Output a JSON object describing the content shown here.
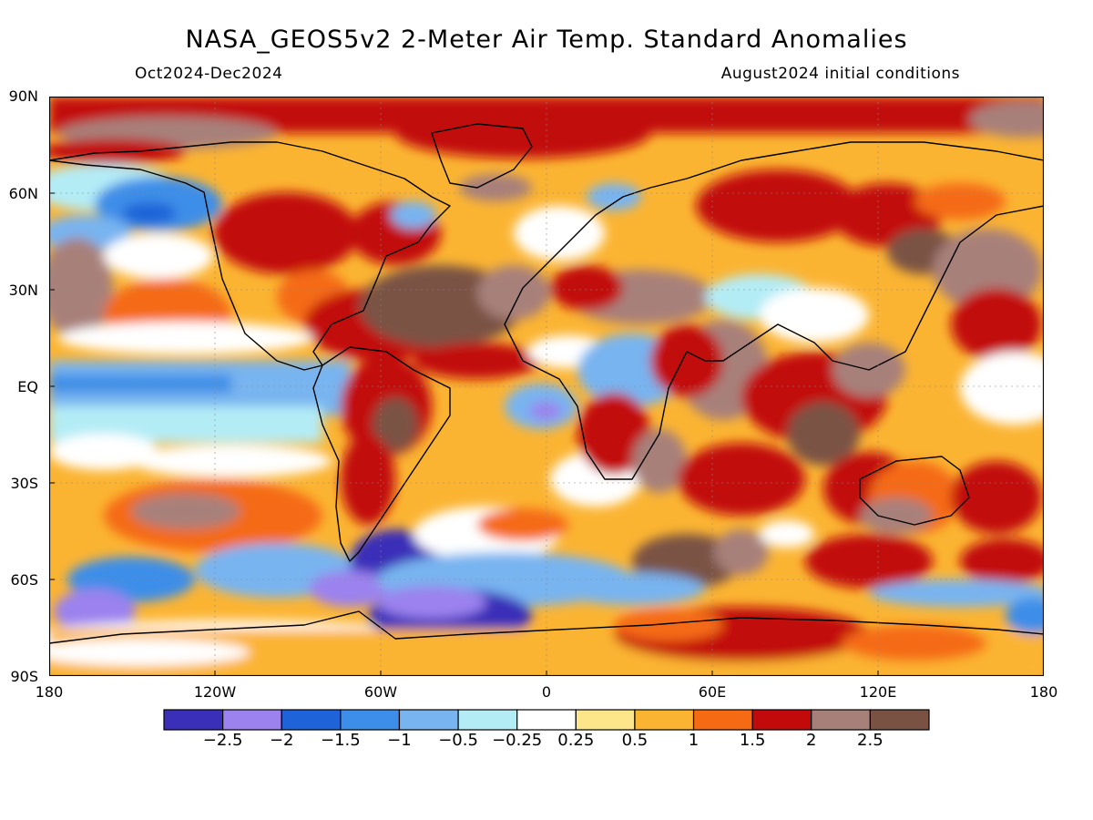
{
  "header": {
    "title": "NASA_GEOS5v2 2-Meter Air Temp. Standard Anomalies",
    "period": "Oct2024-Dec2024",
    "initial_conditions": "August2024 initial conditions"
  },
  "map": {
    "lat_labels": [
      "90N",
      "60N",
      "30N",
      "EQ",
      "30S",
      "60S",
      "90S"
    ],
    "lon_labels": [
      "180",
      "120W",
      "60W",
      "0",
      "60E",
      "120E",
      "180"
    ],
    "colorbar": {
      "colors": [
        "#3a2fb8",
        "#9b82ee",
        "#1e64d8",
        "#3c8ee8",
        "#78b4f0",
        "#b4ecf6",
        "#ffffff",
        "#fde68a",
        "#fbb432",
        "#f56a12",
        "#c20a0a",
        "#a8807a",
        "#7a5244"
      ],
      "labels": [
        "-2.5",
        "-2",
        "-1.5",
        "-1",
        "-0.5",
        "-0.25",
        "0.25",
        "0.5",
        "1",
        "1.5",
        "2",
        "2.5"
      ]
    }
  }
}
